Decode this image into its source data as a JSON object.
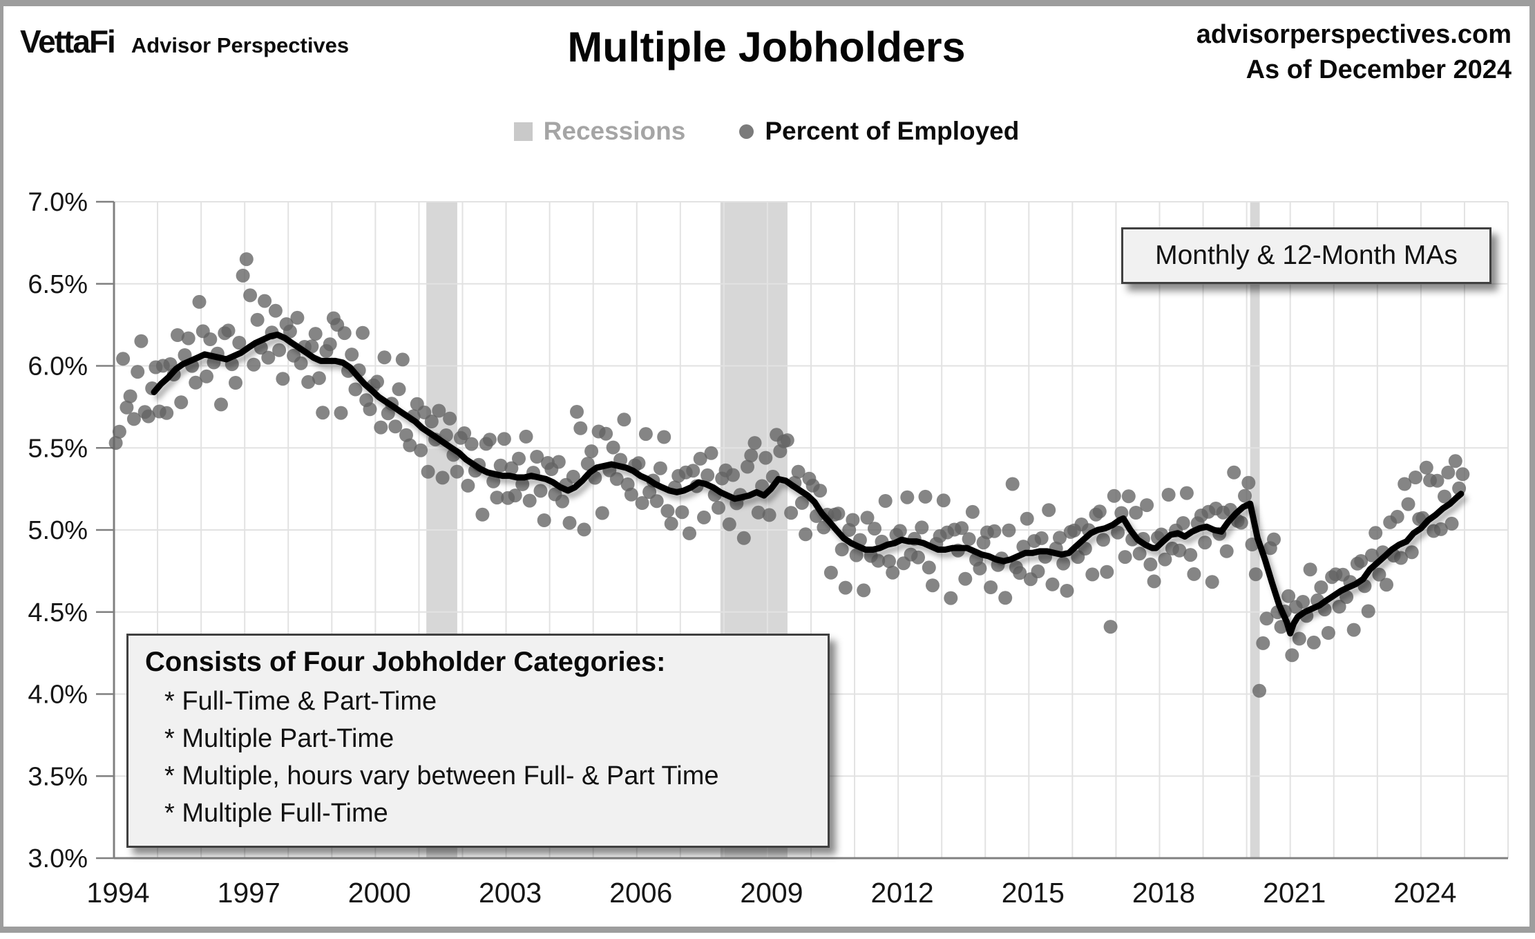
{
  "header": {
    "logo_primary": "VettaFi",
    "logo_secondary": "Advisor Perspectives",
    "title": "Multiple Jobholders",
    "source": "advisorperspectives.com",
    "as_of": "As of December 2024"
  },
  "legend": {
    "recessions_label": "Recessions",
    "series_label": "Percent of Employed"
  },
  "annotations": {
    "ma_note": "Monthly & 12-Month MAs",
    "categories_title": "Consists of Four Jobholder Categories:",
    "categories_items": [
      "* Full-Time & Part-Time",
      "* Multiple Part-Time",
      "* Multiple, hours vary between Full- & Part Time",
      "* Multiple Full-Time"
    ]
  },
  "colors": {
    "background": "#ffffff",
    "frame_border": "#9d9d9d",
    "grid": "#e2e2e2",
    "axis": "#808080",
    "recession_band": "#d7d7d7",
    "dot": "#636363",
    "ma_line": "#050505",
    "legend_recessions_text": "#a5a5a5",
    "legend_swatch": "#c9c9c9",
    "legend_dot": "#7b7b7b",
    "annotation_bg": "#f1f1f1",
    "annotation_border": "#404040"
  },
  "chart_data": {
    "type": "scatter",
    "title": "Multiple Jobholders",
    "xlabel": "",
    "ylabel": "Percent of Employed",
    "xlim": [
      1994,
      2026
    ],
    "ylim": [
      3.0,
      7.0
    ],
    "grid": "on",
    "legend_position": "top-center",
    "x_ticks": [
      1994,
      1997,
      2000,
      2003,
      2006,
      2009,
      2012,
      2015,
      2018,
      2021,
      2024
    ],
    "y_ticks": [
      3.0,
      3.5,
      4.0,
      4.5,
      5.0,
      5.5,
      6.0,
      6.5,
      7.0
    ],
    "y_tick_format": "percent_one_decimal",
    "recessions": [
      {
        "start": 2001.17,
        "end": 2001.88,
        "label": "2001 recession"
      },
      {
        "start": 2007.92,
        "end": 2009.46,
        "label": "2008-09 recession"
      },
      {
        "start": 2020.08,
        "end": 2020.3,
        "label": "2020 recession"
      }
    ],
    "ma_line": {
      "name": "12-Month Moving Average",
      "points": [
        [
          1994.92,
          5.84
        ],
        [
          1995.08,
          5.89
        ],
        [
          1995.25,
          5.93
        ],
        [
          1995.42,
          5.98
        ],
        [
          1995.58,
          6.01
        ],
        [
          1995.75,
          6.03
        ],
        [
          1995.92,
          6.05
        ],
        [
          1996.08,
          6.07
        ],
        [
          1996.25,
          6.06
        ],
        [
          1996.42,
          6.05
        ],
        [
          1996.58,
          6.04
        ],
        [
          1996.75,
          6.06
        ],
        [
          1996.92,
          6.08
        ],
        [
          1997.08,
          6.11
        ],
        [
          1997.25,
          6.14
        ],
        [
          1997.42,
          6.16
        ],
        [
          1997.58,
          6.18
        ],
        [
          1997.75,
          6.19
        ],
        [
          1997.92,
          6.17
        ],
        [
          1998.08,
          6.14
        ],
        [
          1998.25,
          6.11
        ],
        [
          1998.42,
          6.08
        ],
        [
          1998.58,
          6.05
        ],
        [
          1998.75,
          6.03
        ],
        [
          1998.92,
          6.03
        ],
        [
          1999.08,
          6.03
        ],
        [
          1999.25,
          6.02
        ],
        [
          1999.42,
          5.99
        ],
        [
          1999.58,
          5.94
        ],
        [
          1999.75,
          5.89
        ],
        [
          1999.92,
          5.85
        ],
        [
          2000.08,
          5.81
        ],
        [
          2000.25,
          5.78
        ],
        [
          2000.42,
          5.75
        ],
        [
          2000.58,
          5.72
        ],
        [
          2000.75,
          5.69
        ],
        [
          2000.92,
          5.66
        ],
        [
          2001.08,
          5.62
        ],
        [
          2001.25,
          5.59
        ],
        [
          2001.42,
          5.56
        ],
        [
          2001.58,
          5.53
        ],
        [
          2001.75,
          5.5
        ],
        [
          2001.92,
          5.47
        ],
        [
          2002.08,
          5.43
        ],
        [
          2002.25,
          5.4
        ],
        [
          2002.42,
          5.37
        ],
        [
          2002.58,
          5.35
        ],
        [
          2002.75,
          5.34
        ],
        [
          2002.92,
          5.33
        ],
        [
          2003.08,
          5.33
        ],
        [
          2003.25,
          5.32
        ],
        [
          2003.42,
          5.32
        ],
        [
          2003.58,
          5.33
        ],
        [
          2003.75,
          5.32
        ],
        [
          2003.92,
          5.31
        ],
        [
          2004.08,
          5.29
        ],
        [
          2004.25,
          5.26
        ],
        [
          2004.42,
          5.24
        ],
        [
          2004.58,
          5.26
        ],
        [
          2004.75,
          5.3
        ],
        [
          2004.92,
          5.35
        ],
        [
          2005.08,
          5.38
        ],
        [
          2005.25,
          5.39
        ],
        [
          2005.42,
          5.4
        ],
        [
          2005.58,
          5.39
        ],
        [
          2005.75,
          5.38
        ],
        [
          2005.92,
          5.36
        ],
        [
          2006.08,
          5.33
        ],
        [
          2006.25,
          5.31
        ],
        [
          2006.42,
          5.28
        ],
        [
          2006.58,
          5.26
        ],
        [
          2006.75,
          5.24
        ],
        [
          2006.92,
          5.23
        ],
        [
          2007.08,
          5.24
        ],
        [
          2007.25,
          5.26
        ],
        [
          2007.42,
          5.29
        ],
        [
          2007.58,
          5.28
        ],
        [
          2007.75,
          5.26
        ],
        [
          2007.92,
          5.23
        ],
        [
          2008.08,
          5.21
        ],
        [
          2008.25,
          5.19
        ],
        [
          2008.42,
          5.2
        ],
        [
          2008.58,
          5.21
        ],
        [
          2008.75,
          5.23
        ],
        [
          2008.92,
          5.21
        ],
        [
          2009.08,
          5.25
        ],
        [
          2009.25,
          5.31
        ],
        [
          2009.42,
          5.3
        ],
        [
          2009.58,
          5.27
        ],
        [
          2009.75,
          5.24
        ],
        [
          2009.92,
          5.21
        ],
        [
          2010.08,
          5.17
        ],
        [
          2010.25,
          5.1
        ],
        [
          2010.42,
          5.05
        ],
        [
          2010.58,
          5.0
        ],
        [
          2010.75,
          4.95
        ],
        [
          2010.92,
          4.92
        ],
        [
          2011.08,
          4.9
        ],
        [
          2011.25,
          4.88
        ],
        [
          2011.42,
          4.88
        ],
        [
          2011.58,
          4.89
        ],
        [
          2011.75,
          4.91
        ],
        [
          2011.92,
          4.92
        ],
        [
          2012.08,
          4.94
        ],
        [
          2012.25,
          4.93
        ],
        [
          2012.42,
          4.93
        ],
        [
          2012.58,
          4.92
        ],
        [
          2012.75,
          4.9
        ],
        [
          2012.92,
          4.88
        ],
        [
          2013.08,
          4.88
        ],
        [
          2013.25,
          4.89
        ],
        [
          2013.42,
          4.89
        ],
        [
          2013.58,
          4.89
        ],
        [
          2013.75,
          4.87
        ],
        [
          2013.92,
          4.85
        ],
        [
          2014.08,
          4.84
        ],
        [
          2014.25,
          4.82
        ],
        [
          2014.42,
          4.81
        ],
        [
          2014.58,
          4.82
        ],
        [
          2014.75,
          4.84
        ],
        [
          2014.92,
          4.86
        ],
        [
          2015.08,
          4.86
        ],
        [
          2015.25,
          4.87
        ],
        [
          2015.42,
          4.87
        ],
        [
          2015.58,
          4.86
        ],
        [
          2015.75,
          4.85
        ],
        [
          2015.92,
          4.86
        ],
        [
          2016.08,
          4.9
        ],
        [
          2016.25,
          4.94
        ],
        [
          2016.42,
          4.98
        ],
        [
          2016.58,
          5.0
        ],
        [
          2016.75,
          5.01
        ],
        [
          2016.92,
          5.03
        ],
        [
          2017.08,
          5.06
        ],
        [
          2017.17,
          5.07
        ],
        [
          2017.33,
          5.0
        ],
        [
          2017.5,
          4.94
        ],
        [
          2017.67,
          4.91
        ],
        [
          2017.83,
          4.89
        ],
        [
          2017.92,
          4.89
        ],
        [
          2018.08,
          4.93
        ],
        [
          2018.25,
          4.97
        ],
        [
          2018.42,
          4.98
        ],
        [
          2018.58,
          4.96
        ],
        [
          2018.75,
          4.99
        ],
        [
          2018.92,
          5.01
        ],
        [
          2019.08,
          5.02
        ],
        [
          2019.25,
          5.0
        ],
        [
          2019.42,
          4.99
        ],
        [
          2019.58,
          5.05
        ],
        [
          2019.75,
          5.1
        ],
        [
          2019.92,
          5.14
        ],
        [
          2020.08,
          5.16
        ],
        [
          2020.25,
          4.95
        ],
        [
          2020.42,
          4.82
        ],
        [
          2020.58,
          4.68
        ],
        [
          2020.75,
          4.54
        ],
        [
          2020.92,
          4.44
        ],
        [
          2021.0,
          4.37
        ],
        [
          2021.08,
          4.43
        ],
        [
          2021.17,
          4.47
        ],
        [
          2021.33,
          4.5
        ],
        [
          2021.5,
          4.52
        ],
        [
          2021.67,
          4.54
        ],
        [
          2021.83,
          4.57
        ],
        [
          2022.0,
          4.6
        ],
        [
          2022.17,
          4.63
        ],
        [
          2022.33,
          4.65
        ],
        [
          2022.5,
          4.67
        ],
        [
          2022.67,
          4.7
        ],
        [
          2022.83,
          4.76
        ],
        [
          2023.0,
          4.8
        ],
        [
          2023.17,
          4.84
        ],
        [
          2023.33,
          4.88
        ],
        [
          2023.5,
          4.91
        ],
        [
          2023.67,
          4.93
        ],
        [
          2023.83,
          4.98
        ],
        [
          2024.0,
          5.01
        ],
        [
          2024.17,
          5.06
        ],
        [
          2024.33,
          5.09
        ],
        [
          2024.5,
          5.13
        ],
        [
          2024.67,
          5.16
        ],
        [
          2024.83,
          5.2
        ],
        [
          2024.92,
          5.22
        ]
      ]
    },
    "scatter": {
      "name": "Percent of Employed (monthly)",
      "start_year": 1994,
      "months": 372,
      "lead_trend_point": [
        1994.0,
        5.78
      ],
      "noise_pattern": [
        0.1,
        -0.13,
        0.18,
        -0.06,
        0.02,
        -0.19,
        0.12,
        0.22,
        -0.09,
        -0.21,
        0.05,
        0.15,
        -0.11,
        0.07,
        -0.22,
        0.13,
        -0.03,
        0.17,
        -0.15,
        0.04,
        0.2,
        -0.07,
        -0.17,
        0.08
      ],
      "outliers": {
        "1994-01": 5.53,
        "1995-12": 6.39,
        "1996-12": 6.55,
        "1997-01": 6.65,
        "1997-02": 6.43,
        "1999-01": 6.29,
        "1999-02": 6.25,
        "2004-08": 5.72,
        "2004-09": 5.62,
        "2005-02": 5.6,
        "2008-09": 5.53,
        "2009-03": 5.58,
        "2009-04": 5.48,
        "2009-05": 5.54,
        "2010-06": 4.74,
        "2013-01": 5.18,
        "2014-08": 5.28,
        "2016-11": 4.41,
        "2020-03": 4.73,
        "2020-04": 4.02,
        "2020-05": 4.31,
        "2020-06": 4.46,
        "2023-08": 5.28,
        "2023-11": 5.32,
        "2024-02": 5.38,
        "2024-05": 5.3,
        "2024-08": 5.35,
        "2024-10": 5.42,
        "2024-12": 5.34
      }
    }
  }
}
